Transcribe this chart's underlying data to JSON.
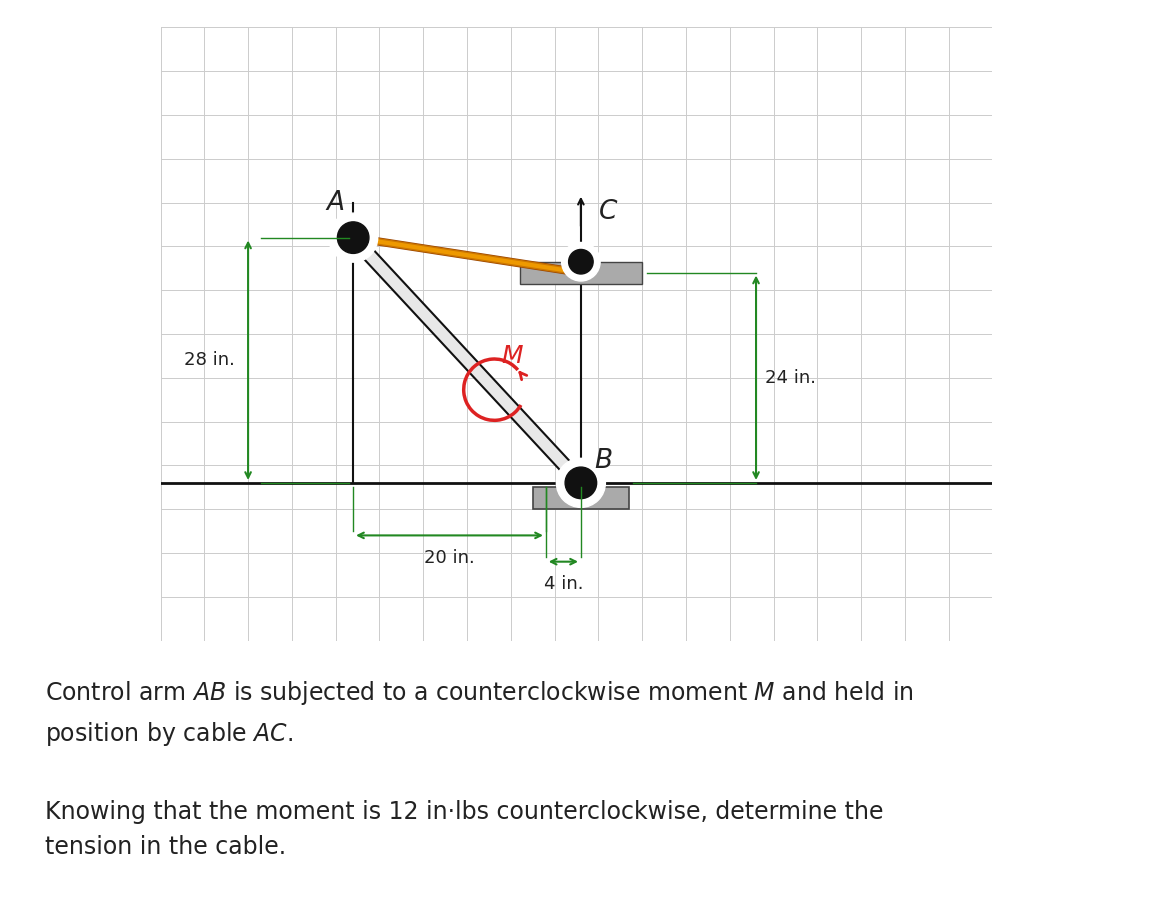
{
  "bg_color": "#ffffff",
  "grid_color": "#cccccc",
  "diagram_bg": "#f0f0f0",
  "border_color": "#222222",
  "arm_color_light": "#e8e8e8",
  "arm_color_dark": "#111111",
  "cable_color": "#cc7700",
  "cable_highlight": "#ee9900",
  "moment_color": "#dd2222",
  "dim_color": "#228822",
  "text_color": "#222222",
  "pin_color": "#111111",
  "wall_color": "#aaaaaa",
  "label_A": "A",
  "label_B": "B",
  "label_C": "C",
  "label_M": "M",
  "dim_28": "28 in.",
  "dim_24": "24 in.",
  "dim_20": "20 in.",
  "dim_4": "4 in.",
  "fontsize_labels": 16,
  "fontsize_dims": 13,
  "fontsize_body": 17,
  "A": [
    22.0,
    56.0
  ],
  "B": [
    48.0,
    28.0
  ],
  "C": [
    48.0,
    52.0
  ],
  "ground_y": 28.0,
  "left_wall_x": 22.0,
  "post_x": 48.0,
  "xlim": [
    0,
    95
  ],
  "ylim": [
    10,
    80
  ]
}
